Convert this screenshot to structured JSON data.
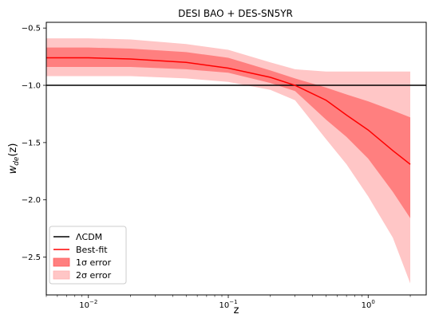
{
  "chart_data": {
    "type": "line",
    "title": "DESI BAO + DES-SN5YR",
    "xlabel": "z",
    "ylabel": "w_de(z)",
    "xscale": "log",
    "xlim": [
      0.005,
      2.6
    ],
    "ylim": [
      -2.83,
      -0.45
    ],
    "x_ticks": [
      {
        "value": 0.01,
        "base": "10",
        "exp": "−2"
      },
      {
        "value": 0.1,
        "base": "10",
        "exp": "−1"
      },
      {
        "value": 1,
        "base": "10",
        "exp": "0"
      }
    ],
    "y_ticks": [
      {
        "value": -0.5,
        "label": "−0.5"
      },
      {
        "value": -1.0,
        "label": "−1.0"
      },
      {
        "value": -1.5,
        "label": "−1.5"
      },
      {
        "value": -2.0,
        "label": "−2.0"
      },
      {
        "value": -2.5,
        "label": "−2.5"
      }
    ],
    "grid": false,
    "legend_position": "bottom-left",
    "series": [
      {
        "name": "ΛCDM",
        "kind": "reference-line",
        "color": "#000000",
        "y": -1.0
      },
      {
        "name": "Best-fit",
        "kind": "line",
        "color": "#ff0000",
        "x": [
          0.005,
          0.01,
          0.02,
          0.05,
          0.1,
          0.2,
          0.3,
          0.5,
          0.7,
          1.0,
          1.5,
          2.0
        ],
        "y": [
          -0.76,
          -0.76,
          -0.77,
          -0.8,
          -0.85,
          -0.93,
          -1.0,
          -1.13,
          -1.26,
          -1.39,
          -1.57,
          -1.69
        ]
      },
      {
        "name": "1σ error",
        "kind": "band",
        "color": "#ff7f7f",
        "x": [
          0.005,
          0.01,
          0.02,
          0.05,
          0.1,
          0.2,
          0.3,
          0.5,
          0.7,
          1.0,
          1.5,
          2.0
        ],
        "lower": [
          -0.84,
          -0.84,
          -0.84,
          -0.86,
          -0.89,
          -0.98,
          -1.05,
          -1.3,
          -1.45,
          -1.64,
          -1.93,
          -2.16
        ],
        "upper": [
          -0.67,
          -0.67,
          -0.68,
          -0.71,
          -0.76,
          -0.87,
          -0.94,
          -1.02,
          -1.08,
          -1.14,
          -1.22,
          -1.28
        ]
      },
      {
        "name": "2σ error",
        "kind": "band",
        "color": "#ffc6c6",
        "x": [
          0.005,
          0.01,
          0.02,
          0.05,
          0.1,
          0.2,
          0.3,
          0.5,
          0.7,
          1.0,
          1.5,
          2.0
        ],
        "lower": [
          -0.92,
          -0.92,
          -0.92,
          -0.94,
          -0.97,
          -1.04,
          -1.13,
          -1.47,
          -1.69,
          -1.97,
          -2.33,
          -2.73
        ],
        "upper": [
          -0.59,
          -0.59,
          -0.6,
          -0.64,
          -0.69,
          -0.8,
          -0.86,
          -0.88,
          -0.88,
          -0.88,
          -0.88,
          -0.88
        ]
      }
    ]
  }
}
